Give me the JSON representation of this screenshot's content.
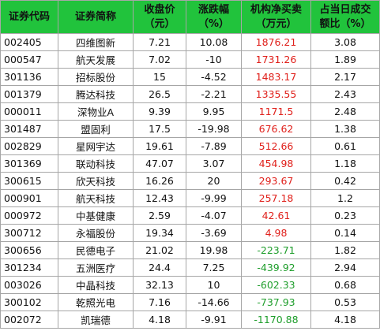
{
  "table": {
    "header": [
      [
        "证券代码"
      ],
      [
        "证券简称"
      ],
      [
        "收盘价",
        "（元）"
      ],
      [
        "涨跌幅",
        "（%）"
      ],
      [
        "机构净买卖",
        "（万元）"
      ],
      [
        "占当日成交",
        "额比（%）"
      ]
    ],
    "rows": [
      [
        "002405",
        "四维图新",
        "7.21",
        "10.08",
        "1876.21",
        "3.08"
      ],
      [
        "000547",
        "航天发展",
        "7.02",
        "-10",
        "1731.26",
        "1.89"
      ],
      [
        "301136",
        "招标股份",
        "15",
        "-4.52",
        "1483.17",
        "2.17"
      ],
      [
        "001379",
        "腾达科技",
        "26.5",
        "-2.21",
        "1335.55",
        "2.43"
      ],
      [
        "000011",
        "深物业A",
        "9.39",
        "9.95",
        "1171.5",
        "2.48"
      ],
      [
        "301487",
        "盟固利",
        "17.5",
        "-19.98",
        "676.62",
        "1.38"
      ],
      [
        "002829",
        "星网宇达",
        "19.61",
        "-7.89",
        "512.66",
        "0.61"
      ],
      [
        "301369",
        "联动科技",
        "47.07",
        "3.07",
        "454.98",
        "1.18"
      ],
      [
        "300615",
        "欣天科技",
        "16.26",
        "20",
        "293.67",
        "0.42"
      ],
      [
        "000901",
        "航天科技",
        "12.43",
        "-9.99",
        "257.18",
        "1.2"
      ],
      [
        "000972",
        "中基健康",
        "2.59",
        "-4.07",
        "42.61",
        "0.23"
      ],
      [
        "300712",
        "永福股份",
        "19.34",
        "-3.69",
        "4.98",
        "0.14"
      ],
      [
        "300656",
        "民德电子",
        "21.02",
        "19.98",
        "-223.71",
        "1.82"
      ],
      [
        "301234",
        "五洲医疗",
        "24.4",
        "7.25",
        "-439.92",
        "2.94"
      ],
      [
        "003026",
        "中晶科技",
        "32.13",
        "10",
        "-602.33",
        "0.68"
      ],
      [
        "300102",
        "乾照光电",
        "7.16",
        "-14.66",
        "-737.93",
        "0.53"
      ],
      [
        "002072",
        "凯瑞德",
        "4.18",
        "-9.91",
        "-1170.88",
        "4.18"
      ]
    ]
  }
}
